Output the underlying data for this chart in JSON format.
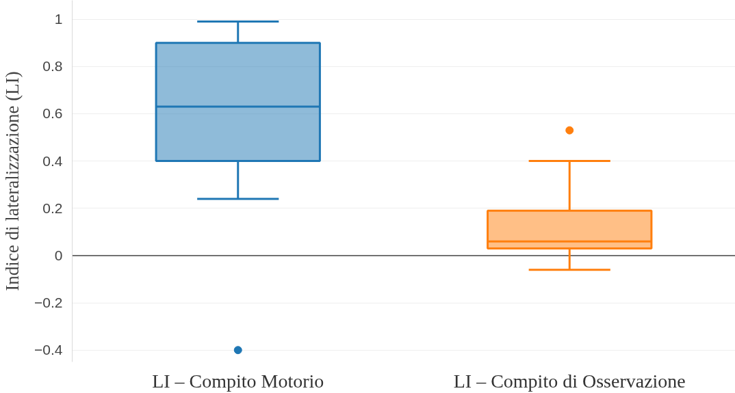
{
  "chart_data": {
    "type": "box",
    "ylabel": "Indice di lateralizzazione (LI)",
    "categories": [
      "LI – Compito Motorio",
      "LI – Compito di Osservazione"
    ],
    "colors": [
      "#1f77b4",
      "#ff7f0e"
    ],
    "boxes": [
      {
        "low": 0.24,
        "q1": 0.4,
        "median": 0.63,
        "q3": 0.9,
        "high": 0.99,
        "outliers": [
          -0.4
        ]
      },
      {
        "low": -0.06,
        "q1": 0.03,
        "median": 0.06,
        "q3": 0.19,
        "high": 0.4,
        "outliers": [
          0.53
        ]
      }
    ],
    "ylim": [
      -0.45,
      1.08
    ],
    "yticks": [
      {
        "value": -0.4,
        "label": "−0.4"
      },
      {
        "value": -0.2,
        "label": "−0.2"
      },
      0,
      0.2,
      0.4,
      0.6,
      0.8,
      1
    ],
    "grid": "y",
    "ref_lines": [
      {
        "axis": "y",
        "value": 0,
        "color": "#444444"
      }
    ]
  }
}
